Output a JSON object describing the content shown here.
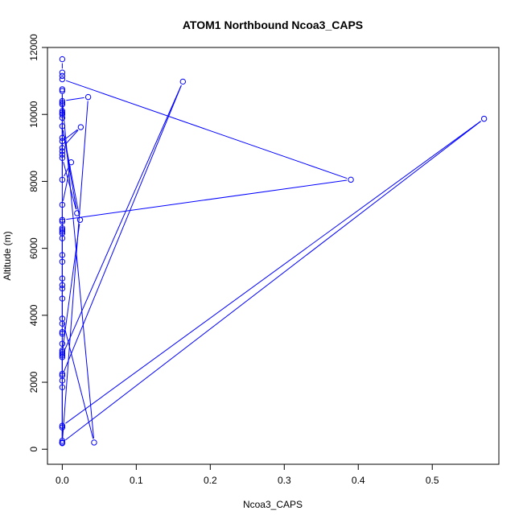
{
  "chart_data": {
    "type": "line",
    "title": "ATOM1 Northbound Ncoa3_CAPS",
    "xlabel": "Ncoa3_CAPS",
    "ylabel": "Altitude (m)",
    "xlim": [
      -0.02,
      0.59
    ],
    "ylim": [
      -450,
      12000
    ],
    "xticks": [
      0,
      0.1,
      0.2,
      0.3,
      0.4,
      0.5
    ],
    "xtick_labels": [
      "0.0",
      "0.1",
      "0.2",
      "0.3",
      "0.4",
      "0.5"
    ],
    "yticks": [
      0,
      2000,
      4000,
      6000,
      8000,
      10000,
      12000
    ],
    "ytick_labels": [
      "0",
      "2000",
      "4000",
      "6000",
      "8000",
      "10000",
      "12000"
    ],
    "series_color": "#0000ff",
    "grid": false,
    "legend": "none",
    "series": [
      {
        "points": [
          [
            0,
            11650
          ],
          [
            0,
            11250
          ],
          [
            0,
            11150
          ],
          [
            0,
            11050
          ],
          [
            0.39,
            8050
          ],
          [
            0,
            6850
          ],
          [
            0,
            6550
          ],
          [
            0,
            6450
          ],
          [
            0,
            5800
          ],
          [
            0,
            5100
          ],
          [
            0,
            4900
          ],
          [
            0,
            4800
          ],
          [
            0,
            3900
          ],
          [
            0.043,
            200
          ],
          [
            0,
            10400
          ],
          [
            0.035,
            10520
          ],
          [
            0,
            200
          ],
          [
            0,
            700
          ],
          [
            0.57,
            9870
          ],
          [
            0,
            200
          ],
          [
            0,
            2800
          ],
          [
            0.163,
            10980
          ],
          [
            0,
            2200
          ],
          [
            0,
            2900
          ],
          [
            0.024,
            6850
          ],
          [
            0,
            9650
          ],
          [
            0.02,
            7050
          ],
          [
            0,
            8700
          ],
          [
            0,
            9200
          ],
          [
            0.025,
            9620
          ],
          [
            0,
            9000
          ],
          [
            0,
            8050
          ],
          [
            0.012,
            8570
          ],
          [
            0,
            7300
          ],
          [
            0,
            6800
          ],
          [
            0,
            6600
          ],
          [
            0,
            6300
          ],
          [
            0,
            6500
          ],
          [
            0,
            5600
          ],
          [
            0,
            4500
          ],
          [
            0,
            3750
          ],
          [
            0,
            3500
          ],
          [
            0,
            3450
          ],
          [
            0,
            3150
          ],
          [
            0,
            2950
          ],
          [
            0,
            2850
          ],
          [
            0,
            2750
          ],
          [
            0,
            2250
          ],
          [
            0,
            2050
          ],
          [
            0,
            1850
          ],
          [
            0,
            650
          ],
          [
            0,
            250
          ],
          [
            0,
            180
          ],
          [
            0,
            10750
          ],
          [
            0,
            10700
          ],
          [
            0,
            10100
          ],
          [
            0,
            10050
          ],
          [
            0,
            10000
          ],
          [
            0,
            9900
          ],
          [
            0,
            9300
          ],
          [
            0,
            8900
          ],
          [
            0,
            8800
          ],
          [
            0,
            10350
          ],
          [
            0,
            10300
          ]
        ]
      }
    ]
  }
}
